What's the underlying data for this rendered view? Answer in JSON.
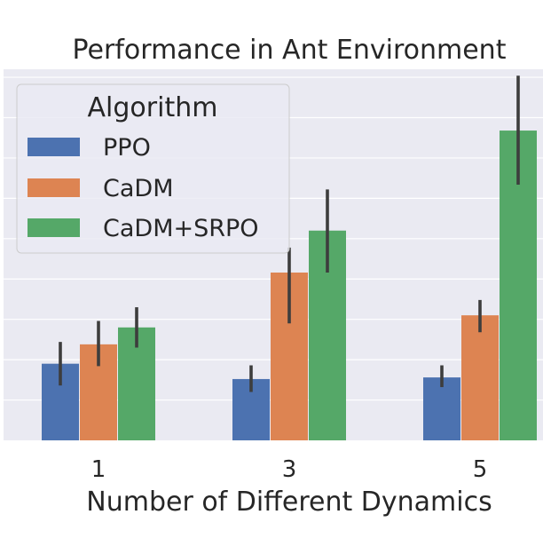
{
  "chart_data": {
    "type": "bar",
    "title": "Performance in Ant Environment",
    "xlabel": "Number of Different Dynamics",
    "ylabel": "",
    "categories": [
      "1",
      "3",
      "5"
    ],
    "ylim": [
      0,
      4.6
    ],
    "grid": true,
    "legend": {
      "title": "Algorithm",
      "placement": "upper-left"
    },
    "series": [
      {
        "name": "PPO",
        "color": "#4c72b0",
        "values": [
          0.95,
          0.76,
          0.78
        ],
        "err_low": [
          0.68,
          0.6,
          0.66
        ],
        "err_high": [
          1.22,
          0.93,
          0.93
        ]
      },
      {
        "name": "CaDM",
        "color": "#dd8452",
        "values": [
          1.19,
          2.08,
          1.55
        ],
        "err_low": [
          0.92,
          1.45,
          1.34
        ],
        "err_high": [
          1.48,
          2.39,
          1.74
        ]
      },
      {
        "name": "CaDM+SRPO",
        "color": "#55a868",
        "values": [
          1.4,
          2.6,
          3.84
        ],
        "err_low": [
          1.15,
          2.08,
          3.17
        ],
        "err_high": [
          1.65,
          3.11,
          4.52
        ]
      }
    ]
  }
}
